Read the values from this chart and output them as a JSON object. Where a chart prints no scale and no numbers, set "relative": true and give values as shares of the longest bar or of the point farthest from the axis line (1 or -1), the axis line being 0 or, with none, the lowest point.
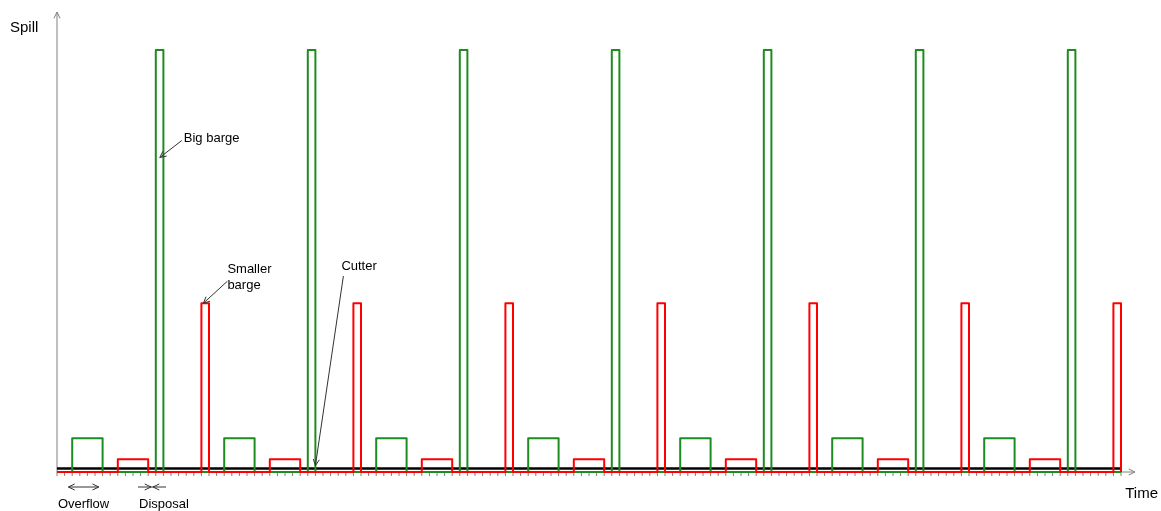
{
  "chart_data": {
    "type": "step",
    "relative": true,
    "xlabel": "Time",
    "ylabel": "Spill",
    "categories": [
      null,
      null,
      null,
      null,
      null,
      null,
      null,
      null,
      null,
      null,
      null,
      null,
      null,
      null,
      null,
      null,
      null,
      null,
      null,
      null,
      null,
      null,
      null,
      null,
      null,
      null,
      null,
      null,
      null,
      null,
      null,
      null,
      null,
      null,
      null,
      null,
      null,
      null,
      null,
      null,
      null,
      null,
      null,
      null,
      null,
      null,
      null,
      null,
      null,
      null,
      null,
      null,
      null,
      null,
      null,
      null,
      null,
      null,
      null,
      null,
      null,
      null,
      null,
      null,
      null,
      null,
      null,
      null,
      null,
      null,
      null,
      null,
      null,
      null,
      null,
      null,
      null,
      null,
      null,
      null,
      null,
      null,
      null,
      null,
      null,
      null,
      null,
      null,
      null,
      null,
      null,
      null,
      null,
      null,
      null,
      null,
      null,
      null,
      null,
      null,
      null,
      null,
      null,
      null,
      null,
      null,
      null,
      null,
      null,
      null,
      null,
      null,
      null,
      null,
      null,
      null,
      null,
      null,
      null,
      null,
      null,
      null,
      null,
      null,
      null,
      null,
      null,
      null,
      null,
      null,
      null,
      null,
      null,
      null,
      null,
      null,
      null,
      null,
      null,
      null,
      null
    ],
    "series": [
      {
        "name": "Cutter",
        "color": "#000000",
        "values": [
          0.008,
          0.008,
          0.008,
          0.008,
          0.008,
          0.008,
          0.008,
          0.008,
          0.008,
          0.008,
          0.008,
          0.008,
          0.008,
          0.008,
          0.008,
          0.008,
          0.008,
          0.008,
          0.008,
          0.008,
          0.008,
          0.008,
          0.008,
          0.008,
          0.008,
          0.008,
          0.008,
          0.008,
          0.008,
          0.008,
          0.008,
          0.008,
          0.008,
          0.008,
          0.008,
          0.008,
          0.008,
          0.008,
          0.008,
          0.008,
          0.008,
          0.008,
          0.008,
          0.008,
          0.008,
          0.008,
          0.008,
          0.008,
          0.008,
          0.008,
          0.008,
          0.008,
          0.008,
          0.008,
          0.008,
          0.008,
          0.008,
          0.008,
          0.008,
          0.008,
          0.008,
          0.008,
          0.008,
          0.008,
          0.008,
          0.008,
          0.008,
          0.008,
          0.008,
          0.008,
          0.008,
          0.008,
          0.008,
          0.008,
          0.008,
          0.008,
          0.008,
          0.008,
          0.008,
          0.008,
          0.008,
          0.008,
          0.008,
          0.008,
          0.008,
          0.008,
          0.008,
          0.008,
          0.008,
          0.008,
          0.008,
          0.008,
          0.008,
          0.008,
          0.008,
          0.008,
          0.008,
          0.008,
          0.008,
          0.008,
          0.008,
          0.008,
          0.008,
          0.008,
          0.008,
          0.008,
          0.008,
          0.008,
          0.008,
          0.008,
          0.008,
          0.008,
          0.008,
          0.008,
          0.008,
          0.008,
          0.008,
          0.008,
          0.008,
          0.008,
          0.008,
          0.008,
          0.008,
          0.008,
          0.008,
          0.008,
          0.008,
          0.008,
          0.008,
          0.008,
          0.008,
          0.008,
          0.008,
          0.008,
          0.008,
          0.008,
          0.008,
          0.008,
          0.008,
          0.008,
          0.008
        ]
      },
      {
        "name": "Big barge",
        "color": "#1e8c1e",
        "values": [
          0,
          0,
          0.08,
          0.08,
          0.08,
          0.08,
          0,
          0,
          0,
          0,
          0,
          0,
          0,
          1,
          0,
          0,
          0,
          0,
          0,
          0,
          0,
          0,
          0.08,
          0.08,
          0.08,
          0.08,
          0,
          0,
          0,
          0,
          0,
          0,
          0,
          1,
          0,
          0,
          0,
          0,
          0,
          0,
          0,
          0,
          0.08,
          0.08,
          0.08,
          0.08,
          0,
          0,
          0,
          0,
          0,
          0,
          0,
          1,
          0,
          0,
          0,
          0,
          0,
          0,
          0,
          0,
          0.08,
          0.08,
          0.08,
          0.08,
          0,
          0,
          0,
          0,
          0,
          0,
          0,
          1,
          0,
          0,
          0,
          0,
          0,
          0,
          0,
          0,
          0.08,
          0.08,
          0.08,
          0.08,
          0,
          0,
          0,
          0,
          0,
          0,
          0,
          1,
          0,
          0,
          0,
          0,
          0,
          0,
          0,
          0,
          0.08,
          0.08,
          0.08,
          0.08,
          0,
          0,
          0,
          0,
          0,
          0,
          0,
          1,
          0,
          0,
          0,
          0,
          0,
          0,
          0,
          0,
          0.08,
          0.08,
          0.08,
          0.08,
          0,
          0,
          0,
          0,
          0,
          0,
          0,
          1,
          0,
          0,
          0,
          0,
          0,
          0,
          0
        ]
      },
      {
        "name": "Smaller barge",
        "color": "#ff0000",
        "values": [
          0,
          0,
          0,
          0,
          0,
          0,
          0,
          0,
          0.03,
          0.03,
          0.03,
          0.03,
          0,
          0,
          0,
          0,
          0,
          0,
          0,
          0.4,
          0,
          0,
          0,
          0,
          0,
          0,
          0,
          0,
          0.03,
          0.03,
          0.03,
          0.03,
          0,
          0,
          0,
          0,
          0,
          0,
          0,
          0.4,
          0,
          0,
          0,
          0,
          0,
          0,
          0,
          0,
          0.03,
          0.03,
          0.03,
          0.03,
          0,
          0,
          0,
          0,
          0,
          0,
          0,
          0.4,
          0,
          0,
          0,
          0,
          0,
          0,
          0,
          0,
          0.03,
          0.03,
          0.03,
          0.03,
          0,
          0,
          0,
          0,
          0,
          0,
          0,
          0.4,
          0,
          0,
          0,
          0,
          0,
          0,
          0,
          0,
          0.03,
          0.03,
          0.03,
          0.03,
          0,
          0,
          0,
          0,
          0,
          0,
          0,
          0.4,
          0,
          0,
          0,
          0,
          0,
          0,
          0,
          0,
          0.03,
          0.03,
          0.03,
          0.03,
          0,
          0,
          0,
          0,
          0,
          0,
          0,
          0.4,
          0,
          0,
          0,
          0,
          0,
          0,
          0,
          0,
          0.03,
          0.03,
          0.03,
          0.03,
          0,
          0,
          0,
          0,
          0,
          0,
          0,
          0.4,
          0
        ]
      }
    ],
    "annotations": [
      "Overflow",
      "Disposal"
    ]
  }
}
